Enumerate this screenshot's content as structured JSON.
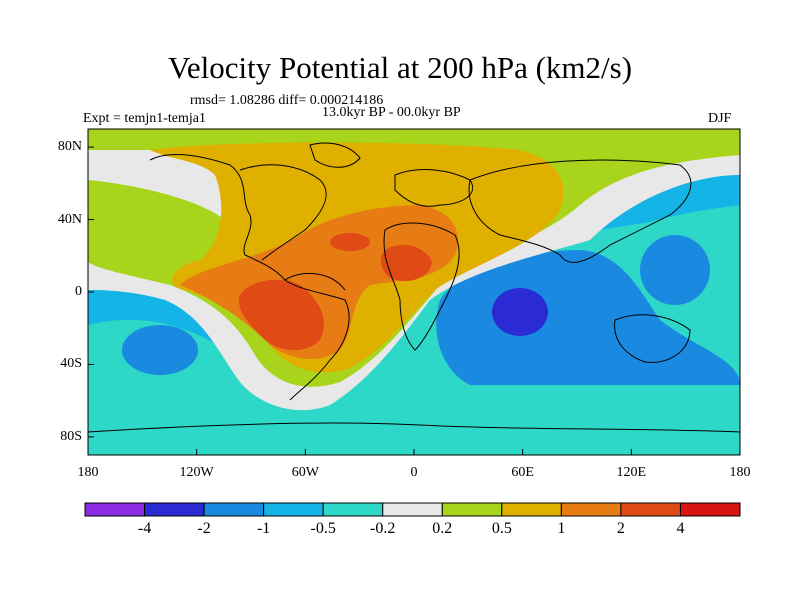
{
  "figure": {
    "title": "Velocity Potential at 200 hPa (km2/s)",
    "stats": "rmsd= 1.08286 diff= 0.000214186",
    "experiment": "Expt = temjn1-temja1",
    "period": "13.0kyr BP - 00.0kyr BP",
    "season": "DJF"
  },
  "axes": {
    "lon_ticks": [
      "180",
      "120W",
      "60W",
      "0",
      "60E",
      "120E",
      "180"
    ],
    "lat_ticks": [
      "80N",
      "40N",
      "0",
      "40S",
      "80S"
    ]
  },
  "colorbar": {
    "colors": [
      "#8a2be2",
      "#2b2bd6",
      "#1a8ae0",
      "#14b4e6",
      "#2ed8c8",
      "#e8e8e8",
      "#a8d41c",
      "#e0b000",
      "#e87c14",
      "#e04a14",
      "#d81414"
    ],
    "labels": [
      "-4",
      "-2",
      "-1",
      "-0.5",
      "-0.2",
      "0.2",
      "0.5",
      "1",
      "2",
      "4"
    ]
  }
}
